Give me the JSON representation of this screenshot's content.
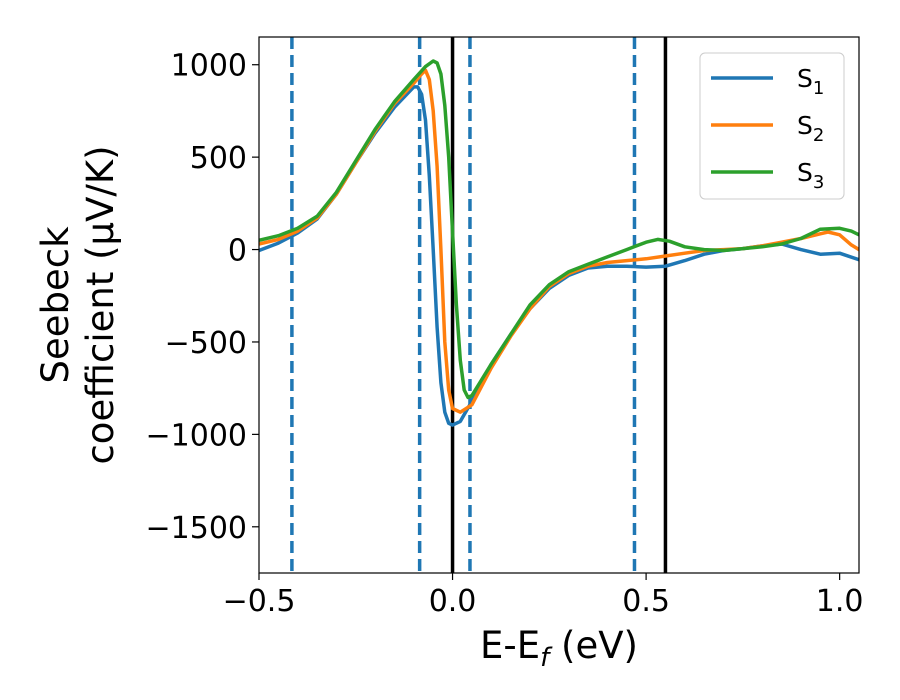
{
  "chart_data": {
    "type": "line",
    "xlabel": "E-E",
    "xlabel_sub": "f",
    "xlabel_unit": " (eV)",
    "ylabel_line1": "Seebeck",
    "ylabel_line2": "coefficient  (μV/K)",
    "xlim": [
      -0.5,
      1.05
    ],
    "ylim": [
      -1750,
      1150
    ],
    "xticks": [
      {
        "value": -0.5,
        "label": "−0.5"
      },
      {
        "value": 0.0,
        "label": "0.0"
      },
      {
        "value": 0.5,
        "label": "0.5"
      },
      {
        "value": 1.0,
        "label": "1.0"
      }
    ],
    "yticks": [
      {
        "value": 1000,
        "label": "1000"
      },
      {
        "value": 500,
        "label": "500"
      },
      {
        "value": 0,
        "label": "0"
      },
      {
        "value": -500,
        "label": "−500"
      },
      {
        "value": -1000,
        "label": "−1000"
      },
      {
        "value": -1500,
        "label": "−1500"
      }
    ],
    "grid": false,
    "legend_position": "top-right",
    "vlines_dashed": {
      "color": "#1f77b4",
      "x": [
        -0.415,
        -0.085,
        0.045,
        0.47
      ]
    },
    "vlines_solid": {
      "color": "#000000",
      "x": [
        0.0,
        0.55
      ]
    },
    "series": [
      {
        "name": "S",
        "sub": "1",
        "color": "#1f77b4",
        "points": [
          [
            -0.5,
            -5
          ],
          [
            -0.45,
            35
          ],
          [
            -0.4,
            90
          ],
          [
            -0.35,
            165
          ],
          [
            -0.3,
            300
          ],
          [
            -0.25,
            470
          ],
          [
            -0.2,
            630
          ],
          [
            -0.15,
            770
          ],
          [
            -0.1,
            880
          ],
          [
            -0.09,
            880
          ],
          [
            -0.08,
            840
          ],
          [
            -0.07,
            700
          ],
          [
            -0.06,
            400
          ],
          [
            -0.05,
            0
          ],
          [
            -0.04,
            -420
          ],
          [
            -0.03,
            -720
          ],
          [
            -0.02,
            -880
          ],
          [
            -0.01,
            -940
          ],
          [
            0.0,
            -950
          ],
          [
            0.02,
            -930
          ],
          [
            0.05,
            -820
          ],
          [
            0.1,
            -620
          ],
          [
            0.15,
            -460
          ],
          [
            0.2,
            -320
          ],
          [
            0.25,
            -210
          ],
          [
            0.3,
            -140
          ],
          [
            0.35,
            -100
          ],
          [
            0.4,
            -90
          ],
          [
            0.45,
            -90
          ],
          [
            0.5,
            -95
          ],
          [
            0.55,
            -90
          ],
          [
            0.6,
            -60
          ],
          [
            0.65,
            -25
          ],
          [
            0.7,
            -5
          ],
          [
            0.75,
            5
          ],
          [
            0.8,
            20
          ],
          [
            0.85,
            30
          ],
          [
            0.9,
            0
          ],
          [
            0.95,
            -25
          ],
          [
            1.0,
            -20
          ],
          [
            1.05,
            -55
          ]
        ]
      },
      {
        "name": "S",
        "sub": "2",
        "color": "#ff7f0e",
        "points": [
          [
            -0.5,
            30
          ],
          [
            -0.45,
            55
          ],
          [
            -0.4,
            100
          ],
          [
            -0.35,
            170
          ],
          [
            -0.3,
            300
          ],
          [
            -0.25,
            470
          ],
          [
            -0.2,
            640
          ],
          [
            -0.15,
            790
          ],
          [
            -0.1,
            900
          ],
          [
            -0.08,
            950
          ],
          [
            -0.07,
            970
          ],
          [
            -0.06,
            920
          ],
          [
            -0.05,
            750
          ],
          [
            -0.04,
            450
          ],
          [
            -0.03,
            0
          ],
          [
            -0.02,
            -500
          ],
          [
            -0.01,
            -760
          ],
          [
            0.0,
            -860
          ],
          [
            0.02,
            -880
          ],
          [
            0.05,
            -840
          ],
          [
            0.1,
            -640
          ],
          [
            0.15,
            -470
          ],
          [
            0.2,
            -320
          ],
          [
            0.25,
            -200
          ],
          [
            0.3,
            -130
          ],
          [
            0.35,
            -90
          ],
          [
            0.4,
            -70
          ],
          [
            0.45,
            -60
          ],
          [
            0.5,
            -50
          ],
          [
            0.55,
            -35
          ],
          [
            0.6,
            -20
          ],
          [
            0.65,
            -5
          ],
          [
            0.7,
            0
          ],
          [
            0.75,
            5
          ],
          [
            0.8,
            20
          ],
          [
            0.85,
            40
          ],
          [
            0.9,
            60
          ],
          [
            0.95,
            85
          ],
          [
            0.97,
            95
          ],
          [
            1.0,
            80
          ],
          [
            1.03,
            25
          ],
          [
            1.05,
            0
          ]
        ]
      },
      {
        "name": "S",
        "sub": "3",
        "color": "#2ca02c",
        "points": [
          [
            -0.5,
            50
          ],
          [
            -0.45,
            75
          ],
          [
            -0.4,
            115
          ],
          [
            -0.35,
            180
          ],
          [
            -0.3,
            310
          ],
          [
            -0.25,
            480
          ],
          [
            -0.2,
            650
          ],
          [
            -0.15,
            800
          ],
          [
            -0.1,
            920
          ],
          [
            -0.07,
            990
          ],
          [
            -0.05,
            1020
          ],
          [
            -0.04,
            1010
          ],
          [
            -0.03,
            950
          ],
          [
            -0.02,
            780
          ],
          [
            -0.01,
            500
          ],
          [
            0.0,
            100
          ],
          [
            0.01,
            -300
          ],
          [
            0.02,
            -600
          ],
          [
            0.03,
            -760
          ],
          [
            0.04,
            -800
          ],
          [
            0.05,
            -790
          ],
          [
            0.1,
            -620
          ],
          [
            0.15,
            -460
          ],
          [
            0.2,
            -300
          ],
          [
            0.25,
            -190
          ],
          [
            0.3,
            -120
          ],
          [
            0.35,
            -80
          ],
          [
            0.4,
            -40
          ],
          [
            0.45,
            0
          ],
          [
            0.5,
            40
          ],
          [
            0.53,
            55
          ],
          [
            0.56,
            45
          ],
          [
            0.6,
            15
          ],
          [
            0.65,
            0
          ],
          [
            0.7,
            -5
          ],
          [
            0.75,
            5
          ],
          [
            0.8,
            15
          ],
          [
            0.85,
            30
          ],
          [
            0.9,
            60
          ],
          [
            0.95,
            110
          ],
          [
            1.0,
            115
          ],
          [
            1.03,
            100
          ],
          [
            1.05,
            80
          ]
        ]
      }
    ]
  }
}
